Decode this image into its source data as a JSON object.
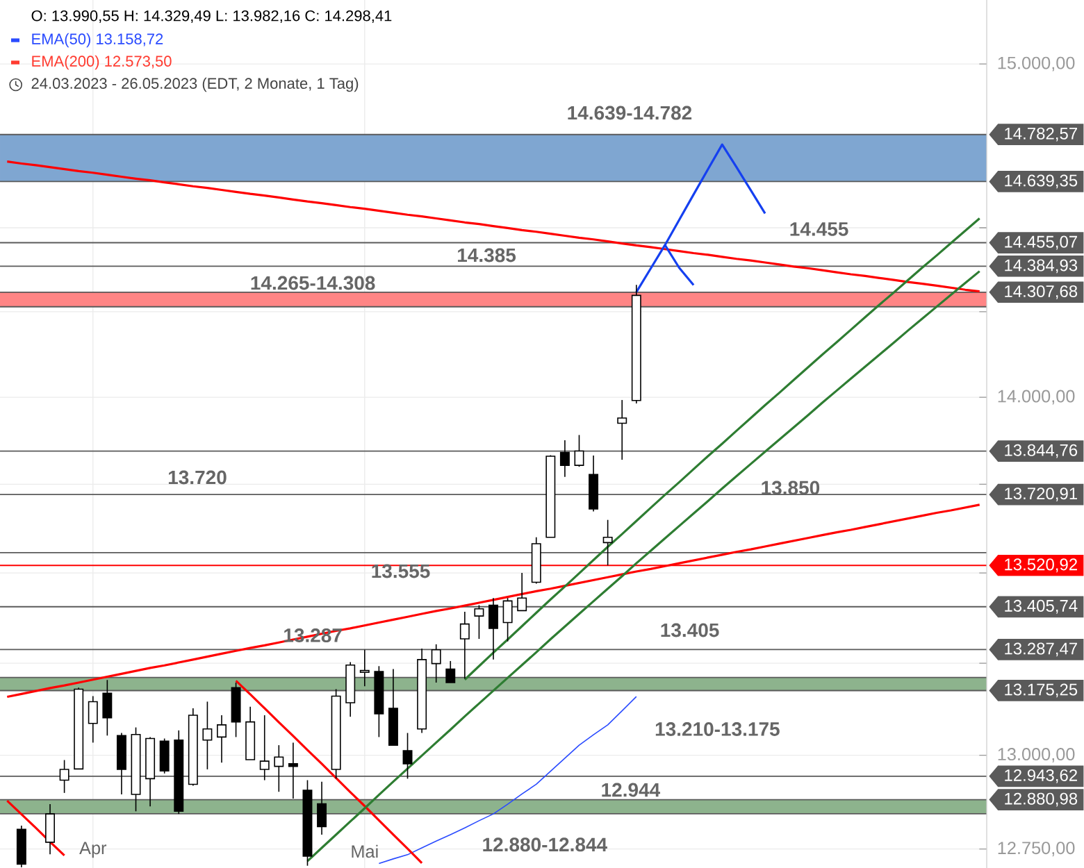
{
  "chart_data": {
    "type": "candlestick",
    "title": "O: 13.990,55  H: 14.329,49  L: 13.982,16  C: 14.298,41",
    "subtitle": "24.03.2023 - 26.05.2023   (EDT, 2 Monate, 1 Tag)",
    "categories": [
      null,
      null,
      null,
      null,
      null,
      null,
      "Apr",
      null,
      null,
      null,
      null,
      null,
      null,
      null,
      null,
      null,
      null,
      null,
      null,
      null,
      null,
      null,
      null,
      null,
      null,
      "Mai",
      null,
      null,
      null,
      null,
      null,
      null,
      null,
      null,
      null,
      null,
      null,
      null,
      null,
      null,
      null,
      null,
      null,
      null,
      null,
      null,
      null,
      null,
      null,
      null,
      null,
      null,
      null,
      null,
      null,
      null,
      null,
      null,
      null,
      null,
      null,
      null,
      null,
      null,
      null,
      null,
      null,
      null,
      null
    ],
    "ohlc": [
      null,
      [
        12802,
        12812,
        12702,
        12710
      ],
      null,
      [
        12768,
        12869,
        12736,
        12843
      ],
      [
        12933,
        12987,
        12899,
        12962
      ],
      [
        12963,
        13183,
        12963,
        13179
      ],
      [
        13086,
        13160,
        13034,
        13145
      ],
      [
        13168,
        13204,
        13053,
        13101
      ],
      [
        13053,
        13060,
        12895,
        12962
      ],
      [
        12895,
        13075,
        12850,
        13056
      ],
      [
        12937,
        13049,
        12863,
        13045
      ],
      [
        13038,
        13045,
        12951,
        12958
      ],
      [
        13041,
        13067,
        12843,
        12850
      ],
      [
        12922,
        13127,
        12918,
        13108
      ],
      [
        13041,
        13145,
        12962,
        13071
      ],
      [
        13049,
        13108,
        12980,
        13082
      ],
      [
        13183,
        13197,
        13049,
        13090
      ],
      [
        12988,
        13131,
        12988,
        13090
      ],
      [
        12962,
        13108,
        12933,
        12984
      ],
      [
        12970,
        13027,
        12902,
        12995
      ],
      [
        12977,
        13034,
        12884,
        12970
      ],
      [
        12906,
        12933,
        12706,
        12731
      ],
      [
        12870,
        12929,
        12788,
        12809
      ],
      [
        12962,
        13179,
        12937,
        13160
      ],
      [
        13142,
        13253,
        13104,
        13245
      ],
      [
        13225,
        13287,
        13187,
        13230
      ],
      [
        13227,
        13242,
        13049,
        13112
      ],
      [
        13127,
        13234,
        13027,
        13027
      ],
      [
        13012,
        13060,
        12937,
        12977
      ],
      [
        13071,
        13290,
        13060,
        13260
      ],
      [
        13249,
        13302,
        13197,
        13287
      ],
      [
        13234,
        13256,
        13197,
        13197
      ],
      [
        13317,
        13392,
        13208,
        13358
      ],
      [
        13380,
        13410,
        13317,
        13400
      ],
      [
        13410,
        13430,
        13260,
        13346
      ],
      [
        13362,
        13430,
        13310,
        13422
      ],
      [
        13395,
        13500,
        13395,
        13430
      ],
      [
        13474,
        13600,
        13470,
        13582
      ],
      [
        13600,
        13833,
        13600,
        13830
      ],
      [
        13841,
        13876,
        13771,
        13804
      ],
      [
        13804,
        13891,
        13800,
        13845
      ],
      [
        13778,
        13832,
        13673,
        13680
      ],
      [
        13585,
        13649,
        13521,
        13600
      ],
      [
        13925,
        13992,
        13820,
        13940
      ],
      [
        13990.55,
        14329.49,
        13982.16,
        14298.41
      ],
      null,
      null,
      null,
      null,
      null,
      null,
      null,
      null,
      null,
      null,
      null,
      null,
      null,
      null,
      null,
      null,
      null,
      null,
      null,
      null,
      null,
      null,
      null,
      null
    ],
    "series": [
      {
        "type": "line",
        "name": "EMA(50)  13.158,72",
        "color": "#2a4bff",
        "values": [
          null,
          null,
          null,
          null,
          null,
          null,
          null,
          null,
          null,
          null,
          null,
          null,
          null,
          null,
          null,
          null,
          null,
          null,
          null,
          null,
          null,
          null,
          null,
          null,
          null,
          null,
          12712,
          12724,
          12735,
          12753,
          12771,
          12788,
          12806,
          12825,
          12843,
          12869,
          12896,
          12922,
          12957,
          12992,
          13027,
          13055,
          13082,
          13120,
          13158.72,
          null,
          null,
          null,
          null,
          null,
          null,
          null,
          null,
          null,
          null,
          null,
          null,
          null,
          null,
          null,
          null,
          null,
          null,
          null,
          null,
          null,
          null,
          null,
          null
        ]
      },
      {
        "type": "line",
        "name": "EMA(200)  12.573,50",
        "color": "#ff3b30",
        "values": [
          null,
          null,
          null,
          null,
          null,
          null,
          null,
          null,
          null,
          null,
          null,
          null,
          null,
          null,
          null,
          null,
          null,
          null,
          null,
          null,
          null,
          null,
          null,
          null,
          null,
          null,
          null,
          null,
          null,
          null,
          null,
          null,
          null,
          null,
          null,
          null,
          null,
          null,
          null,
          null,
          null,
          null,
          null,
          null,
          null,
          null,
          null,
          null,
          null,
          null,
          null,
          null,
          null,
          null,
          null,
          null,
          null,
          null,
          null,
          null,
          null,
          null,
          null,
          null,
          null,
          null,
          null,
          null,
          null
        ]
      },
      {
        "type": "line",
        "color": "#ff0000",
        "values": [
          14700,
          14694,
          14689,
          14683,
          14677,
          14671,
          14666,
          14660,
          14654,
          14648,
          14643,
          14637,
          14631,
          14625,
          14620,
          14614,
          14608,
          14602,
          14597,
          14591,
          14585,
          14579,
          14574,
          14568,
          14562,
          14557,
          14551,
          14545,
          14539,
          14534,
          14528,
          14522,
          14516,
          14511,
          14505,
          14499,
          14493,
          14488,
          14482,
          14476,
          14470,
          14465,
          14459,
          14453,
          14447,
          14442,
          14436,
          14430,
          14424,
          14419,
          14413,
          14407,
          14402,
          14396,
          14390,
          14384,
          14379,
          14373,
          14367,
          14361,
          14356,
          14350,
          14344,
          14338,
          14333,
          14327,
          14321,
          14315,
          14310
        ]
      },
      {
        "type": "line",
        "color": "#ff0000",
        "values": [
          13158,
          13166,
          13174,
          13182,
          13189,
          13197,
          13205,
          13213,
          13221,
          13229,
          13237,
          13244,
          13252,
          13260,
          13268,
          13276,
          13284,
          13292,
          13299,
          13307,
          13315,
          13323,
          13331,
          13339,
          13346,
          13354,
          13362,
          13370,
          13378,
          13386,
          13394,
          13401,
          13409,
          13417,
          13425,
          13433,
          13441,
          13449,
          13456,
          13464,
          13472,
          13480,
          13488,
          13496,
          13504,
          13511,
          13519,
          13527,
          13535,
          13543,
          13551,
          13559,
          13566,
          13574,
          13582,
          13590,
          13598,
          13606,
          13614,
          13621,
          13629,
          13637,
          13645,
          13653,
          13661,
          13669,
          13676,
          13684,
          13692
        ]
      },
      {
        "type": "line",
        "color": "#ff0000",
        "values": [
          12878,
          12842,
          12806,
          12769,
          12733,
          null,
          null,
          null,
          null,
          null,
          null,
          null,
          null,
          null,
          null,
          null,
          null,
          null,
          null,
          null,
          null,
          null,
          null,
          null,
          null,
          null,
          null,
          null,
          null,
          null,
          null,
          null,
          null,
          null,
          null,
          null,
          null,
          null,
          null,
          null,
          null,
          null,
          null,
          null,
          null,
          null,
          null,
          null,
          null,
          null,
          null,
          null,
          null,
          null,
          null,
          null,
          null,
          null,
          null,
          null,
          null,
          null,
          null,
          null,
          null,
          null,
          null,
          null,
          null
        ]
      },
      {
        "type": "line",
        "color": "#ff0000",
        "values": [
          null,
          null,
          null,
          null,
          null,
          null,
          null,
          null,
          null,
          null,
          null,
          null,
          null,
          null,
          null,
          null,
          13202,
          13165,
          13127,
          13089,
          13052,
          13014,
          12977,
          12939,
          12901,
          12864,
          12826,
          12788,
          12751,
          12713,
          null,
          null,
          null,
          null,
          null,
          null,
          null,
          null,
          null,
          null,
          null,
          null,
          null,
          null,
          null,
          null,
          null,
          null,
          null,
          null,
          null,
          null,
          null,
          null,
          null,
          null,
          null,
          null,
          null,
          null,
          null,
          null,
          null,
          null,
          null,
          null,
          null,
          null,
          null
        ]
      },
      {
        "type": "line",
        "color": "#2e7d32",
        "values": [
          null,
          null,
          null,
          null,
          null,
          null,
          null,
          null,
          null,
          null,
          null,
          null,
          null,
          null,
          null,
          null,
          null,
          null,
          null,
          null,
          null,
          12718,
          12753,
          12788,
          12823,
          12858,
          12894,
          12929,
          12964,
          12999,
          13034,
          13069,
          13105,
          13140,
          13175,
          13210,
          13245,
          13280,
          13316,
          13351,
          13386,
          13421,
          13456,
          13491,
          13527,
          13562,
          13597,
          13632,
          13667,
          13702,
          13738,
          13773,
          13808,
          13843,
          13878,
          13913,
          13948,
          13984,
          14019,
          14054,
          14089,
          14124,
          14159,
          14195,
          14230,
          14265,
          14300,
          14335,
          14370
        ]
      },
      {
        "type": "line",
        "color": "#2e7d32",
        "values": [
          null,
          null,
          null,
          null,
          null,
          null,
          null,
          null,
          null,
          null,
          null,
          null,
          null,
          null,
          null,
          null,
          null,
          null,
          null,
          null,
          null,
          null,
          null,
          null,
          null,
          null,
          null,
          null,
          null,
          null,
          null,
          null,
          13205,
          13242,
          13279,
          13315,
          13352,
          13389,
          13426,
          13462,
          13499,
          13536,
          13573,
          13609,
          13646,
          13683,
          13720,
          13756,
          13793,
          13830,
          13866,
          13903,
          13940,
          13977,
          14013,
          14050,
          14087,
          14124,
          14160,
          14197,
          14234,
          14271,
          14307,
          14344,
          14381,
          14417,
          14454,
          14491,
          14528
        ]
      },
      {
        "type": "line",
        "color": "#1540f0",
        "values": [
          null,
          null,
          null,
          null,
          null,
          null,
          null,
          null,
          null,
          null,
          null,
          null,
          null,
          null,
          null,
          null,
          null,
          null,
          null,
          null,
          null,
          null,
          null,
          null,
          null,
          null,
          null,
          null,
          null,
          null,
          null,
          null,
          null,
          null,
          null,
          null,
          null,
          null,
          null,
          null,
          null,
          null,
          null,
          null,
          14308,
          14378,
          14448,
          14524,
          14600,
          14676,
          14752,
          14683,
          14613,
          14543,
          null,
          null,
          null,
          null,
          null,
          null,
          null,
          null,
          null,
          null,
          null,
          null,
          null,
          null,
          null
        ]
      },
      {
        "type": "line",
        "color": "#1540f0",
        "values": [
          null,
          null,
          null,
          null,
          null,
          null,
          null,
          null,
          null,
          null,
          null,
          null,
          null,
          null,
          null,
          null,
          null,
          null,
          null,
          null,
          null,
          null,
          null,
          null,
          null,
          null,
          null,
          null,
          null,
          null,
          null,
          null,
          null,
          null,
          null,
          null,
          null,
          null,
          null,
          null,
          null,
          null,
          null,
          null,
          null,
          null,
          14448,
          14380,
          14329,
          null,
          null,
          null,
          null,
          null,
          null,
          null,
          null,
          null,
          null,
          null,
          null,
          null,
          null,
          null,
          null,
          null,
          null,
          null,
          null
        ]
      }
    ],
    "ylim": [
      12700,
      15200
    ],
    "yticks": [
      {
        "value": 12750,
        "label": "12.750,00"
      },
      {
        "value": 13000,
        "label": "13.000,00"
      },
      {
        "value": 13250,
        "label": null
      },
      {
        "value": 13500,
        "label": null
      },
      {
        "value": 13750,
        "label": null
      },
      {
        "value": 14000,
        "label": "14.000,00"
      },
      {
        "value": 14250,
        "label": null
      },
      {
        "value": 14500,
        "label": null
      },
      {
        "value": 14750,
        "label": null
      },
      {
        "value": 15000,
        "label": "15.000,00"
      }
    ],
    "log": "y",
    "grid": true,
    "legend": "top left",
    "bands": [
      {
        "axis": "y",
        "from": 14639.35,
        "to": 14782.57,
        "color": "#7fa6d1"
      },
      {
        "axis": "y",
        "from": 14264.74,
        "to": 14307.68,
        "color": "#ff8585"
      },
      {
        "axis": "y",
        "from": 13175.25,
        "to": 13210.83,
        "color": "#8db38d"
      },
      {
        "axis": "y",
        "from": 12843.38,
        "to": 12880.98,
        "color": "#8db38d"
      }
    ],
    "ref_lines": [
      {
        "axis": "y",
        "value": 14782.57,
        "label": "14.782,57",
        "color": "#5a5a5a"
      },
      {
        "axis": "y",
        "value": 14639.35,
        "label": "14.639,35",
        "color": "#5a5a5a"
      },
      {
        "axis": "y",
        "value": 14455.07,
        "label": "14.455,07",
        "color": "#5a5a5a"
      },
      {
        "axis": "y",
        "value": 14384.93,
        "label": "14.384,93",
        "color": "#5a5a5a"
      },
      {
        "axis": "y",
        "value": 14307.68,
        "label": "14.307,68",
        "color": "#5a5a5a"
      },
      {
        "axis": "y",
        "value": 14264.74,
        "color": "#5a5a5a"
      },
      {
        "axis": "y",
        "value": 13844.76,
        "label": "13.844,76",
        "color": "#5a5a5a"
      },
      {
        "axis": "y",
        "value": 13720.91,
        "label": "13.720,91",
        "color": "#5a5a5a"
      },
      {
        "axis": "y",
        "value": 13556.67,
        "color": "#5a5a5a"
      },
      {
        "axis": "y",
        "value": 13520.92,
        "label": "13.520,92",
        "color": "#ff0000"
      },
      {
        "axis": "y",
        "value": 13405.74,
        "label": "13.405,74",
        "color": "#5a5a5a"
      },
      {
        "axis": "y",
        "value": 13287.47,
        "label": "13.287,47",
        "color": "#5a5a5a"
      },
      {
        "axis": "y",
        "value": 13210.83,
        "color": "#5a5a5a"
      },
      {
        "axis": "y",
        "value": 13175.25,
        "label": "13.175,25",
        "color": "#5a5a5a"
      },
      {
        "axis": "y",
        "value": 12943.62,
        "label": "12.943,62",
        "color": "#5a5a5a"
      },
      {
        "axis": "y",
        "value": 12880.98,
        "label": "12.880,98",
        "color": "#5a5a5a"
      },
      {
        "axis": "y",
        "value": 12843.38,
        "color": "#5a5a5a"
      }
    ],
    "annotations": [
      "14.639-14.782",
      "14.455",
      "14.385",
      "14.265-14.308",
      "13.720",
      "13.850",
      "13.555",
      "13.287",
      "13.405",
      "13.210-13.175",
      "12.944",
      "12.880-12.844"
    ]
  }
}
